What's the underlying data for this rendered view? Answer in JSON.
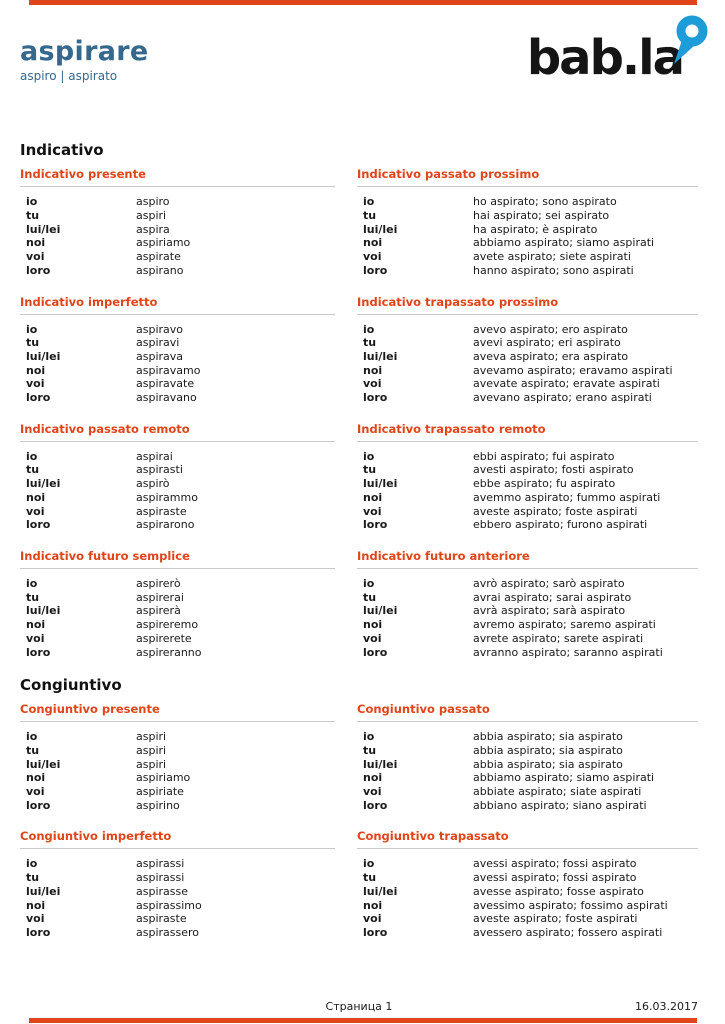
{
  "colors": {
    "accent": "#e0451a",
    "title_blue": "#34688c",
    "logo_blue": "#1e9cd7",
    "rule_gray": "#c9c9c9",
    "text": "#1a1a1a"
  },
  "header": {
    "verb": "aspirare",
    "forms": "aspiro | aspirato",
    "logo_text": "bab.la"
  },
  "groups": [
    {
      "heading": "Indicativo",
      "tables": [
        {
          "title": "Indicativo presente",
          "rows": [
            {
              "p": "io",
              "v": "aspiro"
            },
            {
              "p": "tu",
              "v": "aspiri"
            },
            {
              "p": "lui/lei",
              "v": "aspira"
            },
            {
              "p": "noi",
              "v": "aspiriamo"
            },
            {
              "p": "voi",
              "v": "aspirate"
            },
            {
              "p": "loro",
              "v": "aspirano"
            }
          ]
        },
        {
          "title": "Indicativo passato prossimo",
          "rows": [
            {
              "p": "io",
              "v": "ho aspirato; sono aspirato"
            },
            {
              "p": "tu",
              "v": "hai aspirato; sei aspirato"
            },
            {
              "p": "lui/lei",
              "v": "ha aspirato; è aspirato"
            },
            {
              "p": "noi",
              "v": "abbiamo aspirato; siamo aspirati"
            },
            {
              "p": "voi",
              "v": "avete aspirato; siete aspirati"
            },
            {
              "p": "loro",
              "v": "hanno aspirato; sono aspirati"
            }
          ]
        },
        {
          "title": "Indicativo imperfetto",
          "rows": [
            {
              "p": "io",
              "v": "aspiravo"
            },
            {
              "p": "tu",
              "v": "aspiravi"
            },
            {
              "p": "lui/lei",
              "v": "aspirava"
            },
            {
              "p": "noi",
              "v": "aspiravamo"
            },
            {
              "p": "voi",
              "v": "aspiravate"
            },
            {
              "p": "loro",
              "v": "aspiravano"
            }
          ]
        },
        {
          "title": "Indicativo trapassato prossimo",
          "rows": [
            {
              "p": "io",
              "v": "avevo aspirato; ero aspirato"
            },
            {
              "p": "tu",
              "v": "avevi aspirato; eri aspirato"
            },
            {
              "p": "lui/lei",
              "v": "aveva aspirato; era aspirato"
            },
            {
              "p": "noi",
              "v": "avevamo aspirato; eravamo aspirati"
            },
            {
              "p": "voi",
              "v": "avevate aspirato; eravate aspirati"
            },
            {
              "p": "loro",
              "v": "avevano aspirato; erano aspirati"
            }
          ]
        },
        {
          "title": "Indicativo passato remoto",
          "rows": [
            {
              "p": "io",
              "v": "aspirai"
            },
            {
              "p": "tu",
              "v": "aspirasti"
            },
            {
              "p": "lui/lei",
              "v": "aspirò"
            },
            {
              "p": "noi",
              "v": "aspirammo"
            },
            {
              "p": "voi",
              "v": "aspiraste"
            },
            {
              "p": "loro",
              "v": "aspirarono"
            }
          ]
        },
        {
          "title": "Indicativo trapassato remoto",
          "rows": [
            {
              "p": "io",
              "v": "ebbi aspirato; fui aspirato"
            },
            {
              "p": "tu",
              "v": "avesti aspirato; fosti aspirato"
            },
            {
              "p": "lui/lei",
              "v": "ebbe aspirato; fu aspirato"
            },
            {
              "p": "noi",
              "v": "avemmo aspirato; fummo aspirati"
            },
            {
              "p": "voi",
              "v": "aveste aspirato; foste aspirati"
            },
            {
              "p": "loro",
              "v": "ebbero aspirato; furono aspirati"
            }
          ]
        },
        {
          "title": "Indicativo futuro semplice",
          "rows": [
            {
              "p": "io",
              "v": "aspirerò"
            },
            {
              "p": "tu",
              "v": "aspirerai"
            },
            {
              "p": "lui/lei",
              "v": "aspirerà"
            },
            {
              "p": "noi",
              "v": "aspireremo"
            },
            {
              "p": "voi",
              "v": "aspirerete"
            },
            {
              "p": "loro",
              "v": "aspireranno"
            }
          ]
        },
        {
          "title": "Indicativo futuro anteriore",
          "rows": [
            {
              "p": "io",
              "v": "avrò aspirato; sarò aspirato"
            },
            {
              "p": "tu",
              "v": "avrai aspirato; sarai aspirato"
            },
            {
              "p": "lui/lei",
              "v": "avrà aspirato; sarà aspirato"
            },
            {
              "p": "noi",
              "v": "avremo aspirato; saremo aspirati"
            },
            {
              "p": "voi",
              "v": "avrete aspirato; sarete aspirati"
            },
            {
              "p": "loro",
              "v": "avranno aspirato; saranno aspirati"
            }
          ]
        }
      ]
    },
    {
      "heading": "Congiuntivo",
      "tables": [
        {
          "title": "Congiuntivo presente",
          "rows": [
            {
              "p": "io",
              "v": "aspiri"
            },
            {
              "p": "tu",
              "v": "aspiri"
            },
            {
              "p": "lui/lei",
              "v": "aspiri"
            },
            {
              "p": "noi",
              "v": "aspiriamo"
            },
            {
              "p": "voi",
              "v": "aspiriate"
            },
            {
              "p": "loro",
              "v": "aspirino"
            }
          ]
        },
        {
          "title": "Congiuntivo passato",
          "rows": [
            {
              "p": "io",
              "v": "abbia aspirato; sia aspirato"
            },
            {
              "p": "tu",
              "v": "abbia aspirato; sia aspirato"
            },
            {
              "p": "lui/lei",
              "v": "abbia aspirato; sia aspirato"
            },
            {
              "p": "noi",
              "v": "abbiamo aspirato; siamo aspirati"
            },
            {
              "p": "voi",
              "v": "abbiate aspirato; siate aspirati"
            },
            {
              "p": "loro",
              "v": "abbiano aspirato; siano aspirati"
            }
          ]
        },
        {
          "title": "Congiuntivo imperfetto",
          "rows": [
            {
              "p": "io",
              "v": "aspirassi"
            },
            {
              "p": "tu",
              "v": "aspirassi"
            },
            {
              "p": "lui/lei",
              "v": "aspirasse"
            },
            {
              "p": "noi",
              "v": "aspirassimo"
            },
            {
              "p": "voi",
              "v": "aspiraste"
            },
            {
              "p": "loro",
              "v": "aspirassero"
            }
          ]
        },
        {
          "title": "Congiuntivo trapassato",
          "rows": [
            {
              "p": "io",
              "v": "avessi aspirato; fossi aspirato"
            },
            {
              "p": "tu",
              "v": "avessi aspirato; fossi aspirato"
            },
            {
              "p": "lui/lei",
              "v": "avesse aspirato; fosse aspirato"
            },
            {
              "p": "noi",
              "v": "avessimo aspirato; fossimo aspirati"
            },
            {
              "p": "voi",
              "v": "aveste aspirato; foste aspirati"
            },
            {
              "p": "loro",
              "v": "avessero aspirato; fossero aspirati"
            }
          ]
        }
      ]
    }
  ],
  "footer": {
    "page_label": "Страница 1",
    "date": "16.03.2017"
  }
}
